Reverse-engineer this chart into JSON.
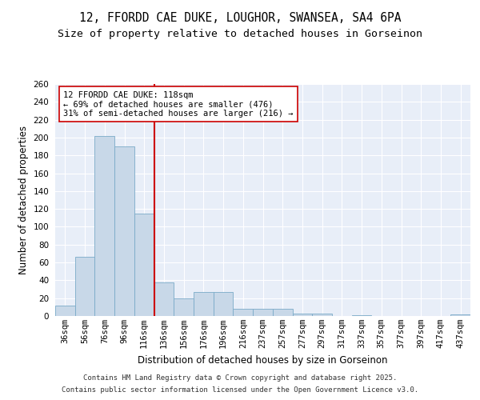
{
  "title_line1": "12, FFORDD CAE DUKE, LOUGHOR, SWANSEA, SA4 6PA",
  "title_line2": "Size of property relative to detached houses in Gorseinon",
  "xlabel": "Distribution of detached houses by size in Gorseinon",
  "ylabel": "Number of detached properties",
  "bar_labels": [
    "36sqm",
    "56sqm",
    "76sqm",
    "96sqm",
    "116sqm",
    "136sqm",
    "156sqm",
    "176sqm",
    "196sqm",
    "216sqm",
    "237sqm",
    "257sqm",
    "277sqm",
    "297sqm",
    "317sqm",
    "337sqm",
    "357sqm",
    "377sqm",
    "397sqm",
    "417sqm",
    "437sqm"
  ],
  "bar_values": [
    12,
    66,
    202,
    190,
    115,
    38,
    20,
    27,
    27,
    8,
    8,
    8,
    3,
    3,
    0,
    1,
    0,
    0,
    0,
    0,
    2
  ],
  "bar_color": "#c8d8e8",
  "bar_edge_color": "#7aaac8",
  "vline_color": "#cc0000",
  "annotation_line1": "12 FFORDD CAE DUKE: 118sqm",
  "annotation_line2": "← 69% of detached houses are smaller (476)",
  "annotation_line3": "31% of semi-detached houses are larger (216) →",
  "annotation_box_color": "#ffffff",
  "annotation_box_edge": "#cc0000",
  "ylim": [
    0,
    260
  ],
  "yticks": [
    0,
    20,
    40,
    60,
    80,
    100,
    120,
    140,
    160,
    180,
    200,
    220,
    240,
    260
  ],
  "bg_color": "#e8eef8",
  "footer_line1": "Contains HM Land Registry data © Crown copyright and database right 2025.",
  "footer_line2": "Contains public sector information licensed under the Open Government Licence v3.0.",
  "title_fontsize": 10.5,
  "subtitle_fontsize": 9.5,
  "axis_label_fontsize": 8.5,
  "tick_fontsize": 7.5,
  "annotation_fontsize": 7.5,
  "footer_fontsize": 6.5
}
